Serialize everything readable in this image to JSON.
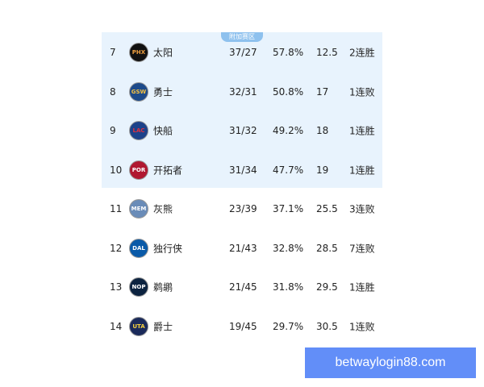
{
  "section_tag": "附加赛区",
  "rows": [
    {
      "rank": "7",
      "abbr": "PHX",
      "team": "太阳",
      "record": "37/27",
      "pct": "57.8%",
      "gb": "12.5",
      "streak": "2连胜",
      "bg": "#111111",
      "fg": "#f0a040",
      "highlight": true
    },
    {
      "rank": "8",
      "abbr": "GSW",
      "team": "勇士",
      "record": "32/31",
      "pct": "50.8%",
      "gb": "17",
      "streak": "1连败",
      "bg": "#1d4a8a",
      "fg": "#f5c040",
      "highlight": true
    },
    {
      "rank": "9",
      "abbr": "LAC",
      "team": "快船",
      "record": "31/32",
      "pct": "49.2%",
      "gb": "18",
      "streak": "1连胜",
      "bg": "#1d428a",
      "fg": "#e03040",
      "highlight": true
    },
    {
      "rank": "10",
      "abbr": "POR",
      "team": "开拓者",
      "record": "31/34",
      "pct": "47.7%",
      "gb": "19",
      "streak": "1连胜",
      "bg": "#b01830",
      "fg": "#ffffff",
      "highlight": true
    },
    {
      "rank": "11",
      "abbr": "MEM",
      "team": "灰熊",
      "record": "23/39",
      "pct": "37.1%",
      "gb": "25.5",
      "streak": "3连败",
      "bg": "#6a8cb8",
      "fg": "#ffffff",
      "highlight": false
    },
    {
      "rank": "12",
      "abbr": "DAL",
      "team": "独行侠",
      "record": "21/43",
      "pct": "32.8%",
      "gb": "28.5",
      "streak": "7连败",
      "bg": "#0a5aa8",
      "fg": "#ffffff",
      "highlight": false
    },
    {
      "rank": "13",
      "abbr": "NOP",
      "team": "鹈鹕",
      "record": "21/45",
      "pct": "31.8%",
      "gb": "29.5",
      "streak": "1连胜",
      "bg": "#0c2340",
      "fg": "#ffffff",
      "highlight": false
    },
    {
      "rank": "14",
      "abbr": "UTA",
      "team": "爵士",
      "record": "19/45",
      "pct": "29.7%",
      "gb": "30.5",
      "streak": "1连败",
      "bg": "#1a2a5a",
      "fg": "#f5d040",
      "highlight": false
    }
  ],
  "watermark": "betwaylogin88.com"
}
